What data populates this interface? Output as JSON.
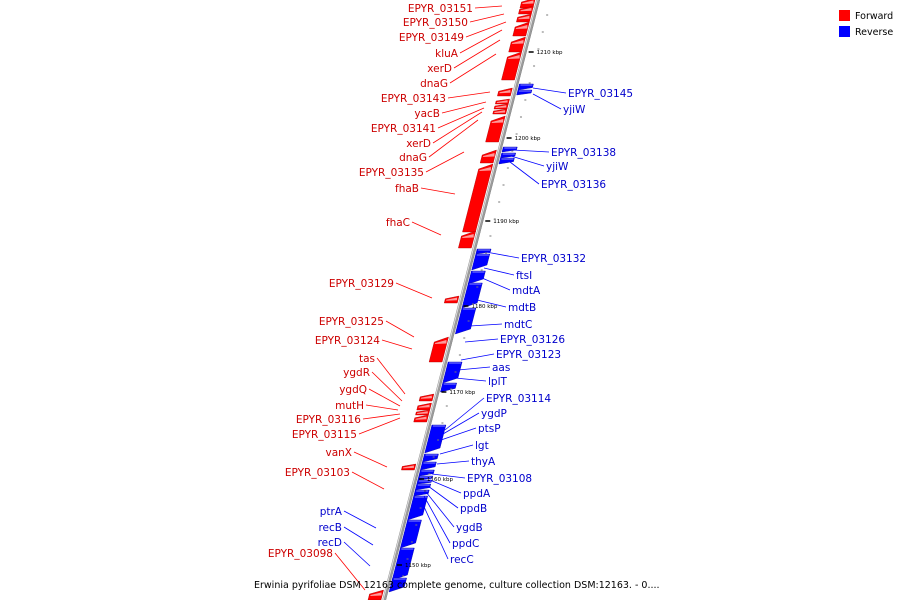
{
  "caption": "Erwinia pyrifoliae DSM 12163 complete genome, culture collection DSM:12163. - 0....",
  "legend": [
    {
      "label": "Forward",
      "color": "#ff0000"
    },
    {
      "label": "Reverse",
      "color": "#0000ff"
    }
  ],
  "colors": {
    "forward": "#ff0000",
    "reverse": "#0000ff",
    "forward_text": "#cc0000",
    "reverse_text": "#0000cc",
    "backbone": "#9a9a9a"
  },
  "ticks": [
    "1210 kbp",
    "1200 kbp",
    "1190 kbp",
    "1180 kbp",
    "1170 kbp",
    "1160 kbp",
    "1150 kbp"
  ],
  "forward_genes": [
    "EPYR_03151",
    "EPYR_03150",
    "EPYR_03149",
    "kluA",
    "xerD",
    "dnaG",
    "EPYR_03143",
    "yacB",
    "EPYR_03141",
    "xerD",
    "dnaG",
    "EPYR_03135",
    "fhaB",
    "fhaC",
    "EPYR_03129",
    "EPYR_03125",
    "EPYR_03124",
    "tas",
    "ygdR",
    "ygdQ",
    "mutH",
    "EPYR_03116",
    "EPYR_03115",
    "vanX",
    "EPYR_03103",
    "EPYR_03098"
  ],
  "reverse_genes": [
    "EPYR_03145",
    "yjiW",
    "EPYR_03138",
    "yjiW",
    "EPYR_03136",
    "EPYR_03132",
    "ftsI",
    "mdtA",
    "mdtB",
    "mdtC",
    "EPYR_03126",
    "EPYR_03123",
    "aas",
    "lplT",
    "EPYR_03114",
    "ygdP",
    "ptsP",
    "lgt",
    "thyA",
    "EPYR_03108",
    "ppdA",
    "ppdB",
    "ygdB",
    "ppdC",
    "recC",
    "ptrA",
    "recB",
    "recD"
  ]
}
